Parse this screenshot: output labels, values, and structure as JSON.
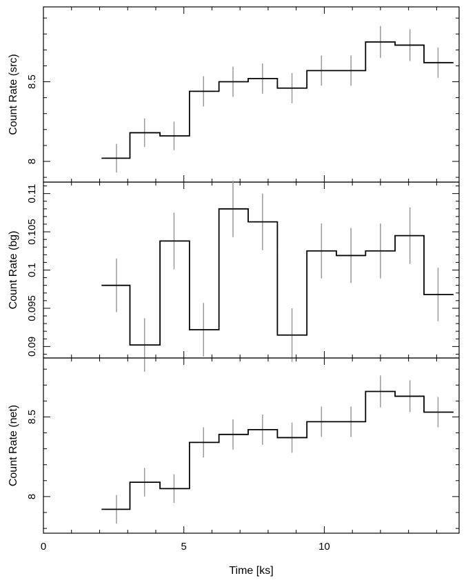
{
  "chart_data": {
    "type": "line",
    "xlabel": "Time [ks]",
    "xlim": [
      0,
      14.8
    ],
    "x_ticks": [
      "0",
      "5",
      "10"
    ],
    "x_tick_values": [
      0,
      5,
      10
    ],
    "colors": {
      "step": "#000000",
      "errorbar": "#999999",
      "frame": "#000000"
    },
    "grid": false,
    "bins": {
      "edges": [
        2.07,
        3.08,
        4.15,
        5.2,
        6.25,
        7.29,
        8.33,
        9.38,
        10.43,
        11.47,
        12.52,
        13.55,
        14.6
      ],
      "centers": [
        2.6,
        3.6,
        4.65,
        5.7,
        6.75,
        7.8,
        8.85,
        9.9,
        10.95,
        12.0,
        13.05,
        14.05
      ]
    },
    "panels": [
      {
        "ylabel": "Count Rate (src)",
        "ylim": [
          7.87,
          8.97
        ],
        "y_ticks": [
          "8",
          "8.5"
        ],
        "y_tick_values": [
          8,
          8.5
        ],
        "minor_step": 0.1,
        "values": [
          8.02,
          8.18,
          8.16,
          8.44,
          8.5,
          8.52,
          8.46,
          8.57,
          8.57,
          8.75,
          8.73,
          8.62
        ],
        "errors": [
          0.09,
          0.09,
          0.09,
          0.095,
          0.095,
          0.095,
          0.095,
          0.095,
          0.095,
          0.1,
          0.1,
          0.095
        ]
      },
      {
        "ylabel": "Count Rate (bg)",
        "ylim": [
          0.0885,
          0.1115
        ],
        "y_ticks": [
          "0.09",
          "0.095",
          "0.1",
          "0.105",
          "0.11"
        ],
        "y_tick_values": [
          0.09,
          0.095,
          0.1,
          0.105,
          0.11
        ],
        "minor_step": 0.001,
        "values": [
          0.098,
          0.0902,
          0.1038,
          0.0922,
          0.108,
          0.1063,
          0.0915,
          0.1025,
          0.1019,
          0.1025,
          0.1045,
          0.0968
        ],
        "errors": [
          0.0035,
          0.0035,
          0.0037,
          0.0035,
          0.0037,
          0.0037,
          0.0035,
          0.0036,
          0.0036,
          0.0036,
          0.0037,
          0.0035
        ]
      },
      {
        "ylabel": "Count Rate (net)",
        "ylim": [
          7.77,
          8.87
        ],
        "y_ticks": [
          "8",
          "8.5"
        ],
        "y_tick_values": [
          8,
          8.5
        ],
        "minor_step": 0.1,
        "values": [
          7.92,
          8.09,
          8.05,
          8.34,
          8.39,
          8.42,
          8.37,
          8.47,
          8.47,
          8.66,
          8.63,
          8.53
        ],
        "errors": [
          0.09,
          0.09,
          0.09,
          0.095,
          0.095,
          0.095,
          0.095,
          0.095,
          0.095,
          0.1,
          0.1,
          0.095
        ]
      }
    ]
  }
}
